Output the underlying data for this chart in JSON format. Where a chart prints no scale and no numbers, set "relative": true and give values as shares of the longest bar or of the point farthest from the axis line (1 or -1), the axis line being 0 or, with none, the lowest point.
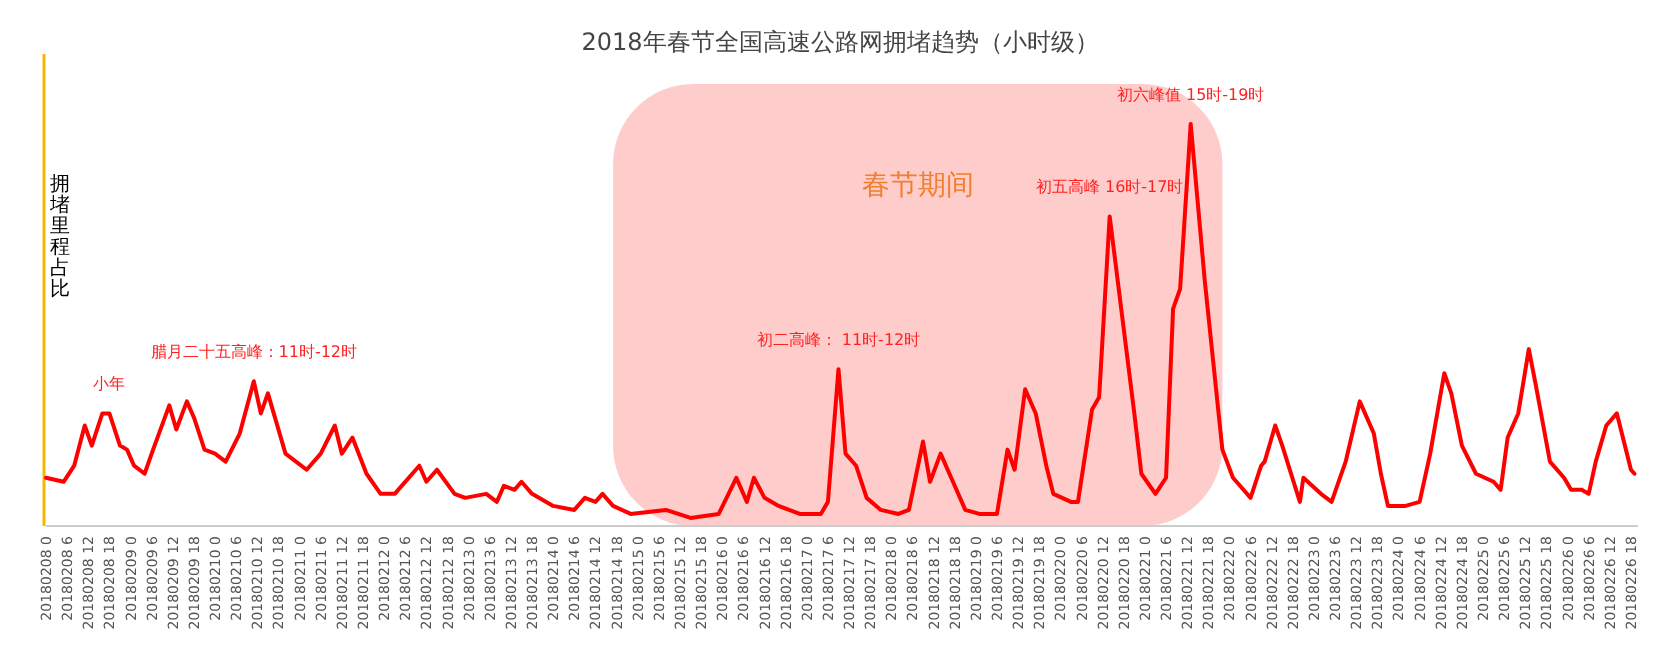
{
  "chart_data": {
    "type": "line",
    "title": "2018年春节全国高速公路网拥堵趋势（小时级）",
    "ylabel": "拥堵里程占比",
    "relative": true,
    "color": "#ff0000",
    "marker": "none",
    "line_style": "solid",
    "x": [
      "2018-02-08T00:00",
      "2018-02-08T05:00",
      "2018-02-08T08:00",
      "2018-02-08T11:00",
      "2018-02-08T13:00",
      "2018-02-08T16:00",
      "2018-02-08T18:00",
      "2018-02-08T21:00",
      "2018-02-08T23:00",
      "2018-02-09T01:00",
      "2018-02-09T04:00",
      "2018-02-09T06:00",
      "2018-02-09T11:00",
      "2018-02-09T13:00",
      "2018-02-09T16:00",
      "2018-02-09T18:00",
      "2018-02-09T21:00",
      "2018-02-10T00:00",
      "2018-02-10T03:00",
      "2018-02-10T07:00",
      "2018-02-10T11:00",
      "2018-02-10T13:00",
      "2018-02-10T15:00",
      "2018-02-10T20:00",
      "2018-02-11T02:00",
      "2018-02-11T06:00",
      "2018-02-11T10:00",
      "2018-02-11T12:00",
      "2018-02-11T15:00",
      "2018-02-11T19:00",
      "2018-02-11T23:00",
      "2018-02-12T03:00",
      "2018-02-12T10:00",
      "2018-02-12T12:00",
      "2018-02-12T15:00",
      "2018-02-12T20:00",
      "2018-02-12T23:00",
      "2018-02-13T05:00",
      "2018-02-13T08:00",
      "2018-02-13T10:00",
      "2018-02-13T13:00",
      "2018-02-13T15:00",
      "2018-02-13T18:00",
      "2018-02-14T00:00",
      "2018-02-14T06:00",
      "2018-02-14T09:00",
      "2018-02-14T12:00",
      "2018-02-14T14:00",
      "2018-02-14T17:00",
      "2018-02-14T22:00",
      "2018-02-15T08:00",
      "2018-02-15T15:00",
      "2018-02-15T23:00",
      "2018-02-16T04:00",
      "2018-02-16T07:00",
      "2018-02-16T09:00",
      "2018-02-16T12:00",
      "2018-02-16T16:00",
      "2018-02-16T22:00",
      "2018-02-17T04:00",
      "2018-02-17T06:00",
      "2018-02-17T09:00",
      "2018-02-17T11:00",
      "2018-02-17T14:00",
      "2018-02-17T17:00",
      "2018-02-17T21:00",
      "2018-02-18T02:00",
      "2018-02-18T05:00",
      "2018-02-18T09:00",
      "2018-02-18T11:00",
      "2018-02-18T14:00",
      "2018-02-18T18:00",
      "2018-02-18T21:00",
      "2018-02-19T01:00",
      "2018-02-19T06:00",
      "2018-02-19T09:00",
      "2018-02-19T11:00",
      "2018-02-19T14:00",
      "2018-02-19T17:00",
      "2018-02-19T20:00",
      "2018-02-19T22:00",
      "2018-02-20T03:00",
      "2018-02-20T05:00",
      "2018-02-20T09:00",
      "2018-02-20T11:00",
      "2018-02-20T14:00",
      "2018-02-20T17:00",
      "2018-02-20T21:00",
      "2018-02-20T23:00",
      "2018-02-21T03:00",
      "2018-02-21T06:00",
      "2018-02-21T08:00",
      "2018-02-21T10:00",
      "2018-02-21T13:00",
      "2018-02-21T17:00",
      "2018-02-21T22:00",
      "2018-02-22T01:00",
      "2018-02-22T03:00",
      "2018-02-22T06:00",
      "2018-02-22T09:00",
      "2018-02-22T10:00",
      "2018-02-22T13:00",
      "2018-02-22T15:00",
      "2018-02-22T20:00",
      "2018-02-22T21:00",
      "2018-02-23T02:00",
      "2018-02-23T05:00",
      "2018-02-23T09:00",
      "2018-02-23T13:00",
      "2018-02-23T17:00",
      "2018-02-23T19:00",
      "2018-02-23T21:00",
      "2018-02-24T02:00",
      "2018-02-24T06:00",
      "2018-02-24T09:00",
      "2018-02-24T13:00",
      "2018-02-24T15:00",
      "2018-02-24T18:00",
      "2018-02-24T22:00",
      "2018-02-25T03:00",
      "2018-02-25T05:00",
      "2018-02-25T07:00",
      "2018-02-25T10:00",
      "2018-02-25T13:00",
      "2018-02-25T15:00",
      "2018-02-25T19:00",
      "2018-02-25T23:00",
      "2018-02-26T01:00",
      "2018-02-26T04:00",
      "2018-02-26T06:00",
      "2018-02-26T08:00",
      "2018-02-26T11:00",
      "2018-02-26T14:00",
      "2018-02-26T18:00",
      "2018-02-26T19:00"
    ],
    "values": [
      0.12,
      0.11,
      0.15,
      0.25,
      0.2,
      0.28,
      0.28,
      0.2,
      0.19,
      0.15,
      0.13,
      0.18,
      0.3,
      0.24,
      0.31,
      0.27,
      0.19,
      0.18,
      0.16,
      0.23,
      0.36,
      0.28,
      0.33,
      0.18,
      0.14,
      0.18,
      0.25,
      0.18,
      0.22,
      0.13,
      0.08,
      0.08,
      0.15,
      0.11,
      0.14,
      0.08,
      0.07,
      0.08,
      0.06,
      0.1,
      0.09,
      0.11,
      0.08,
      0.05,
      0.04,
      0.07,
      0.06,
      0.08,
      0.05,
      0.03,
      0.04,
      0.02,
      0.03,
      0.12,
      0.06,
      0.12,
      0.07,
      0.05,
      0.03,
      0.03,
      0.06,
      0.39,
      0.18,
      0.15,
      0.07,
      0.04,
      0.03,
      0.04,
      0.21,
      0.11,
      0.18,
      0.1,
      0.04,
      0.03,
      0.03,
      0.19,
      0.14,
      0.34,
      0.28,
      0.15,
      0.08,
      0.06,
      0.06,
      0.29,
      0.32,
      0.77,
      0.56,
      0.28,
      0.13,
      0.08,
      0.12,
      0.54,
      0.59,
      1,
      0.61,
      0.19,
      0.12,
      0.1,
      0.07,
      0.15,
      0.16,
      0.25,
      0.2,
      0.06,
      0.12,
      0.08,
      0.06,
      0.16,
      0.31,
      0.23,
      0.13,
      0.05,
      0.05,
      0.06,
      0.18,
      0.38,
      0.33,
      0.2,
      0.13,
      0.11,
      0.09,
      0.22,
      0.28,
      0.44,
      0.35,
      0.16,
      0.12,
      0.09,
      0.09,
      0.08,
      0.16,
      0.25,
      0.28,
      0.14,
      0.13
    ],
    "xlim": [
      "2018-02-08T00:00",
      "2018-02-26T20:00"
    ],
    "xticks": [
      {
        "value": "2018-02-08T00:00",
        "label": "20180208 0"
      },
      {
        "value": "2018-02-08T06:00",
        "label": "20180208 6"
      },
      {
        "value": "2018-02-08T12:00",
        "label": "20180208 12"
      },
      {
        "value": "2018-02-08T18:00",
        "label": "20180208 18"
      },
      {
        "value": "2018-02-09T00:00",
        "label": "20180209 0"
      },
      {
        "value": "2018-02-09T06:00",
        "label": "20180209 6"
      },
      {
        "value": "2018-02-09T12:00",
        "label": "20180209 12"
      },
      {
        "value": "2018-02-09T18:00",
        "label": "20180209 18"
      },
      {
        "value": "2018-02-10T00:00",
        "label": "20180210 0"
      },
      {
        "value": "2018-02-10T06:00",
        "label": "20180210 6"
      },
      {
        "value": "2018-02-10T12:00",
        "label": "20180210 12"
      },
      {
        "value": "2018-02-10T18:00",
        "label": "20180210 18"
      },
      {
        "value": "2018-02-11T00:00",
        "label": "20180211 0"
      },
      {
        "value": "2018-02-11T06:00",
        "label": "20180211 6"
      },
      {
        "value": "2018-02-11T12:00",
        "label": "20180211 12"
      },
      {
        "value": "2018-02-11T18:00",
        "label": "20180211 18"
      },
      {
        "value": "2018-02-12T00:00",
        "label": "20180212 0"
      },
      {
        "value": "2018-02-12T06:00",
        "label": "20180212 6"
      },
      {
        "value": "2018-02-12T12:00",
        "label": "20180212 12"
      },
      {
        "value": "2018-02-12T18:00",
        "label": "20180212 18"
      },
      {
        "value": "2018-02-13T00:00",
        "label": "20180213 0"
      },
      {
        "value": "2018-02-13T06:00",
        "label": "20180213 6"
      },
      {
        "value": "2018-02-13T12:00",
        "label": "20180213 12"
      },
      {
        "value": "2018-02-13T18:00",
        "label": "20180213 18"
      },
      {
        "value": "2018-02-14T00:00",
        "label": "20180214 0"
      },
      {
        "value": "2018-02-14T06:00",
        "label": "20180214 6"
      },
      {
        "value": "2018-02-14T12:00",
        "label": "20180214 12"
      },
      {
        "value": "2018-02-14T18:00",
        "label": "20180214 18"
      },
      {
        "value": "2018-02-15T00:00",
        "label": "20180215 0"
      },
      {
        "value": "2018-02-15T06:00",
        "label": "20180215 6"
      },
      {
        "value": "2018-02-15T12:00",
        "label": "20180215 12"
      },
      {
        "value": "2018-02-15T18:00",
        "label": "20180215 18"
      },
      {
        "value": "2018-02-16T00:00",
        "label": "20180216 0"
      },
      {
        "value": "2018-02-16T06:00",
        "label": "20180216 6"
      },
      {
        "value": "2018-02-16T12:00",
        "label": "20180216 12"
      },
      {
        "value": "2018-02-16T18:00",
        "label": "20180216 18"
      },
      {
        "value": "2018-02-17T00:00",
        "label": "20180217 0"
      },
      {
        "value": "2018-02-17T06:00",
        "label": "20180217 6"
      },
      {
        "value": "2018-02-17T12:00",
        "label": "20180217 12"
      },
      {
        "value": "2018-02-17T18:00",
        "label": "20180217 18"
      },
      {
        "value": "2018-02-18T00:00",
        "label": "20180218 0"
      },
      {
        "value": "2018-02-18T06:00",
        "label": "20180218 6"
      },
      {
        "value": "2018-02-18T12:00",
        "label": "20180218 12"
      },
      {
        "value": "2018-02-18T18:00",
        "label": "20180218 18"
      },
      {
        "value": "2018-02-19T00:00",
        "label": "20180219 0"
      },
      {
        "value": "2018-02-19T06:00",
        "label": "20180219 6"
      },
      {
        "value": "2018-02-19T12:00",
        "label": "20180219 12"
      },
      {
        "value": "2018-02-19T18:00",
        "label": "20180219 18"
      },
      {
        "value": "2018-02-20T00:00",
        "label": "20180220 0"
      },
      {
        "value": "2018-02-20T06:00",
        "label": "20180220 6"
      },
      {
        "value": "2018-02-20T12:00",
        "label": "20180220 12"
      },
      {
        "value": "2018-02-20T18:00",
        "label": "20180220 18"
      },
      {
        "value": "2018-02-21T00:00",
        "label": "20180221 0"
      },
      {
        "value": "2018-02-21T06:00",
        "label": "20180221 6"
      },
      {
        "value": "2018-02-21T12:00",
        "label": "20180221 12"
      },
      {
        "value": "2018-02-21T18:00",
        "label": "20180221 18"
      },
      {
        "value": "2018-02-22T00:00",
        "label": "20180222 0"
      },
      {
        "value": "2018-02-22T06:00",
        "label": "20180222 6"
      },
      {
        "value": "2018-02-22T12:00",
        "label": "20180222 12"
      },
      {
        "value": "2018-02-22T18:00",
        "label": "20180222 18"
      },
      {
        "value": "2018-02-23T00:00",
        "label": "20180223 0"
      },
      {
        "value": "2018-02-23T06:00",
        "label": "20180223 6"
      },
      {
        "value": "2018-02-23T12:00",
        "label": "20180223 12"
      },
      {
        "value": "2018-02-23T18:00",
        "label": "20180223 18"
      },
      {
        "value": "2018-02-24T00:00",
        "label": "20180224 0"
      },
      {
        "value": "2018-02-24T06:00",
        "label": "20180224 6"
      },
      {
        "value": "2018-02-24T12:00",
        "label": "20180224 12"
      },
      {
        "value": "2018-02-24T18:00",
        "label": "20180224 18"
      },
      {
        "value": "2018-02-25T00:00",
        "label": "20180225 0"
      },
      {
        "value": "2018-02-25T06:00",
        "label": "20180225 6"
      },
      {
        "value": "2018-02-25T12:00",
        "label": "20180225 12"
      },
      {
        "value": "2018-02-25T18:00",
        "label": "20180225 18"
      },
      {
        "value": "2018-02-26T00:00",
        "label": "20180226 0"
      },
      {
        "value": "2018-02-26T06:00",
        "label": "20180226 6"
      },
      {
        "value": "2018-02-26T12:00",
        "label": "20180226 12"
      },
      {
        "value": "2018-02-26T18:00",
        "label": "20180226 18"
      }
    ],
    "bands": [
      {
        "axis": "x",
        "from": "2018-02-14T17:00",
        "to": "2018-02-21T22:00",
        "label": "春节期间",
        "color": "#ffcccc"
      }
    ],
    "annotations": [
      {
        "text": "小年",
        "x": "2018-02-08T18:00",
        "y": 0.28
      },
      {
        "text": "腊月二十五高峰：11时-12时",
        "x": "2018-02-10T11:00",
        "y": 0.36
      },
      {
        "text": "初二高峰： 11时-12时",
        "x": "2018-02-17T09:00",
        "y": 0.39
      },
      {
        "text": "初五高峰 16时-17时",
        "x": "2018-02-20T14:00",
        "y": 0.77
      },
      {
        "text": "初六峰值 15时-19时",
        "x": "2018-02-21T13:00",
        "y": 1
      }
    ]
  }
}
